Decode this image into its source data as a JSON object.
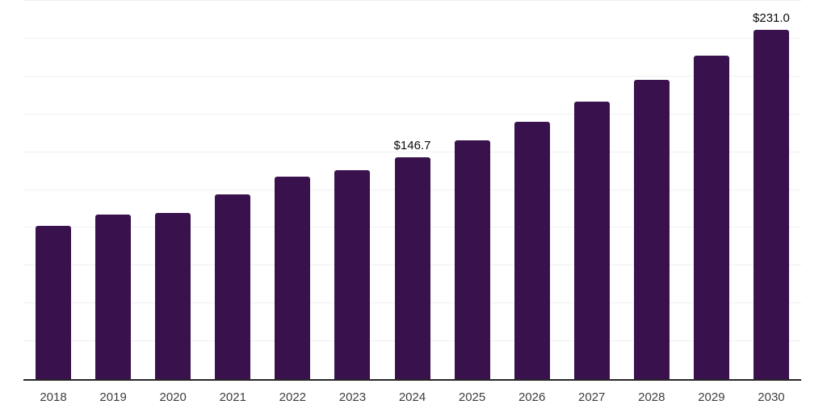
{
  "chart_data": {
    "type": "bar",
    "title": "",
    "xlabel": "",
    "ylabel": "",
    "categories": [
      "2018",
      "2019",
      "2020",
      "2021",
      "2022",
      "2023",
      "2024",
      "2025",
      "2026",
      "2027",
      "2028",
      "2029",
      "2030"
    ],
    "values": [
      101.3,
      108.6,
      109.9,
      122.3,
      133.9,
      138.0,
      146.7,
      157.9,
      170.0,
      183.3,
      197.7,
      213.8,
      231.0
    ],
    "point_labels": [
      "",
      "",
      "",
      "",
      "",
      "",
      "$146.7",
      "",
      "",
      "",
      "",
      "",
      "$231.0"
    ],
    "ylim": [
      0,
      250
    ],
    "gridline_step": 25,
    "grid": true,
    "legend": "none",
    "y_axis_labels_visible": false,
    "colors": {
      "bar": "#38114d",
      "axis_line": "#262626",
      "gridline": "#f0f0f0",
      "value_label": "#0a0a0a",
      "tick_label": "#3d3d3d",
      "background": "#ffffff"
    }
  }
}
